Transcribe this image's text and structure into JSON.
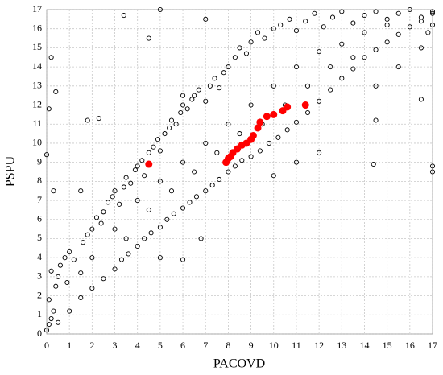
{
  "chart_data": {
    "type": "scatter",
    "x_label": "PACOVD",
    "y_label": "PSPU",
    "xlim": [
      0,
      17
    ],
    "ylim": [
      0,
      17
    ],
    "xticks": [
      0,
      1,
      2,
      3,
      4,
      5,
      6,
      7,
      8,
      9,
      10,
      11,
      12,
      13,
      14,
      15,
      16,
      17
    ],
    "yticks": [
      0,
      1,
      2,
      3,
      4,
      5,
      6,
      7,
      8,
      9,
      10,
      11,
      12,
      13,
      14,
      15,
      16,
      17
    ],
    "grid": true,
    "series": [
      {
        "color": "#000000",
        "x": [
          0,
          0.1,
          0.2,
          0.3,
          0.1,
          0.4,
          0.5,
          0.2,
          0.6,
          0.8,
          1.0,
          0.9,
          1.2,
          1.5,
          1.6,
          1.8,
          2.0,
          2.2,
          2.4,
          2.5,
          2.7,
          2.9,
          3.0,
          3.2,
          3.4,
          3.5,
          3.7,
          3.9,
          4.0,
          4.2,
          4.3,
          4.5,
          4.7,
          4.9,
          5.0,
          5.2,
          5.4,
          5.5,
          5.7,
          5.9,
          6.0,
          6.2,
          6.4,
          6.5,
          6.7,
          7.0,
          7.2,
          7.4,
          7.6,
          7.8,
          8.0,
          8.3,
          8.5,
          8.8,
          9.0,
          9.3,
          9.6,
          10.0,
          10.3,
          10.7,
          11.0,
          11.4,
          11.8,
          12.2,
          12.6,
          13.0,
          13.5,
          14.0,
          14.5,
          15.0,
          15.5,
          16.0,
          16.5,
          17.0,
          17.0,
          16.8,
          0.5,
          1.0,
          1.5,
          2.0,
          2.5,
          3.0,
          3.3,
          3.6,
          4.0,
          4.3,
          4.6,
          5.0,
          5.3,
          5.6,
          6.0,
          6.3,
          6.6,
          7.0,
          7.3,
          7.6,
          8.0,
          8.3,
          8.6,
          9.0,
          9.4,
          9.8,
          10.2,
          10.6,
          11.0,
          11.5,
          12.0,
          12.5,
          13.0,
          13.5,
          14.0,
          14.5,
          15.0,
          15.5,
          16.0,
          16.5,
          17.0,
          17.0,
          17.0,
          16.5,
          2.0,
          3.0,
          4.0,
          5.0,
          6.0,
          7.0,
          8.0,
          9.0,
          10.0,
          11.0,
          12.0,
          13.0,
          14.0,
          15.0,
          5.5,
          6.5,
          7.5,
          8.5,
          9.5,
          10.5,
          11.5,
          12.5,
          13.5,
          14.5,
          15.5,
          16.5,
          3.5,
          4.5,
          6.0,
          1.8,
          2.3,
          0.1,
          0.2,
          3.4,
          4.5,
          5.0,
          7.0,
          0.4,
          0.0,
          0.3,
          1.5,
          12.0,
          14.5,
          14.4,
          5.0,
          6.0,
          6.8,
          10.0,
          11.0
        ],
        "values": [
          0.2,
          0.5,
          0.8,
          1.2,
          1.8,
          2.5,
          3.0,
          3.3,
          3.6,
          4.0,
          4.3,
          2.7,
          3.9,
          3.2,
          4.8,
          5.2,
          5.5,
          6.1,
          5.8,
          6.4,
          6.9,
          7.2,
          7.5,
          6.8,
          7.7,
          8.2,
          7.9,
          8.6,
          8.8,
          9.1,
          8.3,
          9.5,
          9.8,
          10.2,
          9.6,
          10.5,
          10.8,
          11.2,
          11.0,
          11.6,
          12.0,
          11.8,
          12.3,
          12.5,
          12.8,
          12.2,
          13.0,
          13.4,
          12.9,
          13.7,
          14.0,
          14.5,
          15.0,
          14.7,
          15.3,
          15.8,
          15.5,
          16.0,
          16.2,
          16.5,
          15.9,
          16.4,
          16.8,
          16.1,
          16.6,
          16.9,
          16.3,
          16.7,
          16.9,
          16.5,
          16.8,
          17.0,
          16.6,
          16.9,
          16.2,
          15.8,
          0.6,
          1.2,
          1.9,
          2.4,
          2.9,
          3.4,
          3.9,
          4.2,
          4.6,
          5.0,
          5.3,
          5.6,
          6.0,
          6.3,
          6.6,
          6.9,
          7.2,
          7.5,
          7.8,
          8.1,
          8.5,
          8.8,
          9.1,
          9.3,
          9.6,
          10.0,
          10.3,
          10.7,
          11.1,
          11.6,
          12.2,
          12.8,
          13.4,
          13.9,
          14.5,
          14.9,
          15.3,
          15.7,
          16.1,
          16.4,
          16.8,
          8.5,
          8.8,
          12.3,
          4.0,
          5.5,
          7.0,
          8.0,
          9.0,
          10.0,
          11.0,
          12.0,
          13.0,
          14.0,
          14.8,
          15.2,
          15.8,
          16.2,
          7.5,
          8.5,
          9.5,
          10.5,
          11.0,
          12.0,
          13.0,
          14.0,
          14.5,
          13.0,
          14.0,
          15.0,
          5.0,
          6.5,
          12.5,
          11.2,
          11.3,
          11.8,
          14.5,
          16.7,
          15.5,
          17.0,
          16.5,
          12.7,
          9.4,
          7.5,
          7.5,
          9.5,
          11.2,
          8.9,
          4.0,
          3.9,
          5.0,
          8.3,
          9.0
        ]
      },
      {
        "color": "#ff0000",
        "x": [
          4.5,
          7.9,
          8.0,
          8.1,
          8.2,
          8.4,
          8.6,
          8.8,
          9.0,
          9.1,
          9.3,
          9.4,
          9.7,
          10.0,
          10.4,
          10.6,
          11.4
        ],
        "values": [
          8.9,
          9.0,
          9.2,
          9.3,
          9.5,
          9.7,
          9.9,
          10.0,
          10.2,
          10.4,
          10.8,
          11.1,
          11.4,
          11.5,
          11.7,
          11.9,
          12.0
        ]
      }
    ]
  }
}
